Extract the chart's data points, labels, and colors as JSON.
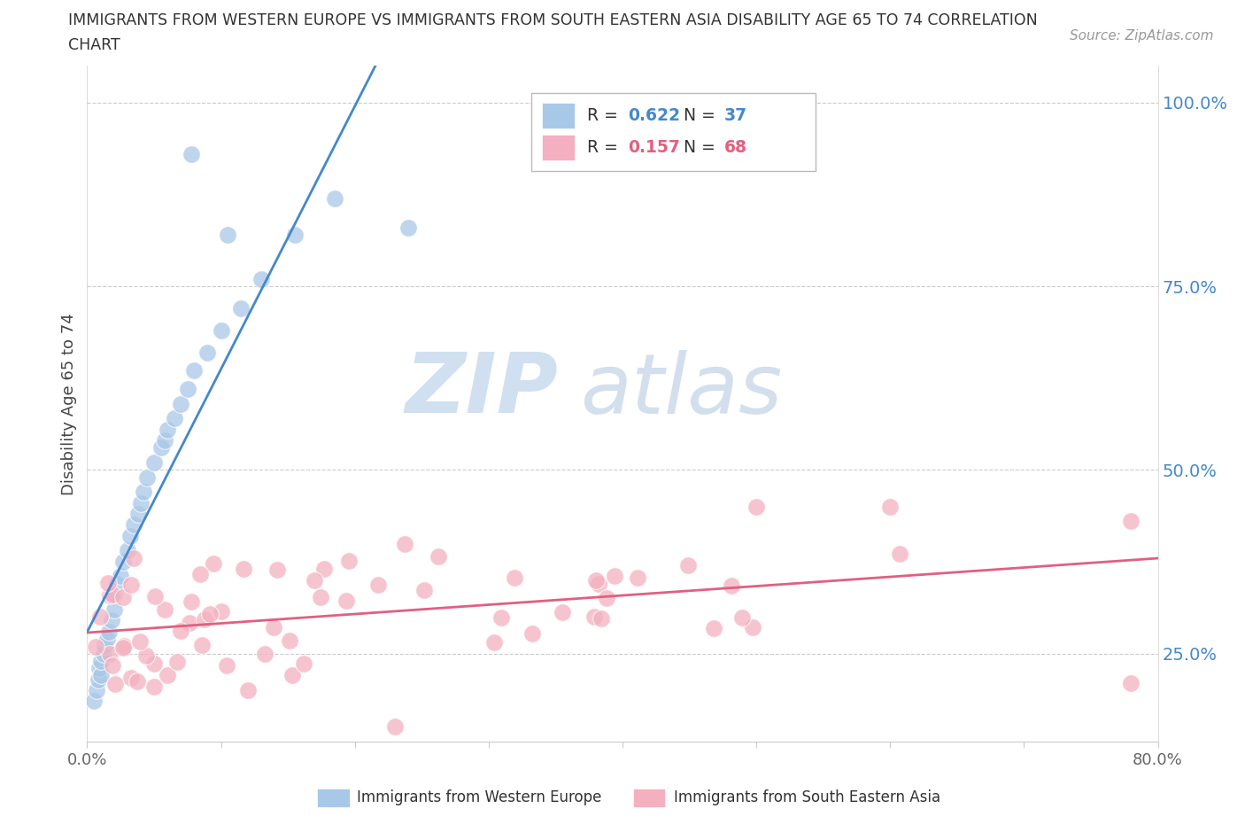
{
  "title_line1": "IMMIGRANTS FROM WESTERN EUROPE VS IMMIGRANTS FROM SOUTH EASTERN ASIA DISABILITY AGE 65 TO 74 CORRELATION",
  "title_line2": "CHART",
  "source": "Source: ZipAtlas.com",
  "ylabel": "Disability Age 65 to 74",
  "xlim": [
    0.0,
    0.8
  ],
  "ylim": [
    0.13,
    1.05
  ],
  "yticks": [
    0.25,
    0.5,
    0.75,
    1.0
  ],
  "yticklabels": [
    "25.0%",
    "50.0%",
    "75.0%",
    "100.0%"
  ],
  "legend_labels": [
    "Immigrants from Western Europe",
    "Immigrants from South Eastern Asia"
  ],
  "R_blue": 0.622,
  "N_blue": 37,
  "R_pink": 0.157,
  "N_pink": 68,
  "blue_color": "#a8c8e8",
  "pink_color": "#f4b0c0",
  "blue_line_color": "#4488cc",
  "pink_line_color": "#e06080",
  "blue_text_color": "#4488cc",
  "pink_text_color": "#e06080",
  "grid_color": "#cccccc",
  "tick_color": "#aaaaaa",
  "title_color": "#333333",
  "source_color": "#999999",
  "watermark_zip_color": "#d0e0f0",
  "watermark_atlas_color": "#c8d8e8"
}
